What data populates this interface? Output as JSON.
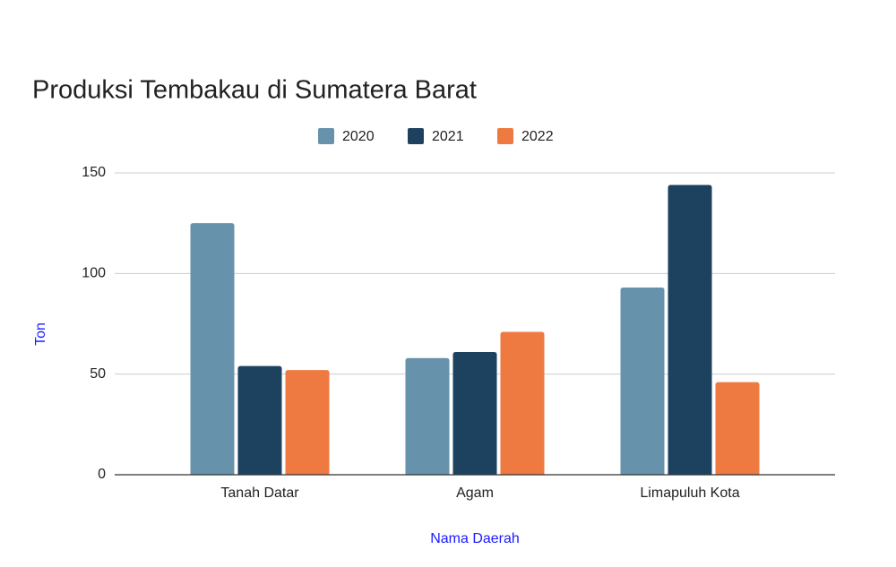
{
  "chart_data": {
    "type": "bar",
    "title": "Produksi Tembakau di Sumatera Barat",
    "x_label": "Nama Daerah",
    "y_label": "Ton",
    "categories": [
      "Tanah Datar",
      "Agam",
      "Limapuluh Kota"
    ],
    "series": [
      {
        "name": "2020",
        "color": "#6792ab",
        "values": [
          125,
          58,
          93
        ]
      },
      {
        "name": "2021",
        "color": "#1c4260",
        "values": [
          54,
          61,
          144
        ]
      },
      {
        "name": "2022",
        "color": "#ee7941",
        "values": [
          52,
          71,
          46
        ]
      }
    ],
    "ylim": [
      0,
      150
    ],
    "yticks": [
      0,
      50,
      100,
      150
    ],
    "grid": true,
    "legend": "top"
  }
}
